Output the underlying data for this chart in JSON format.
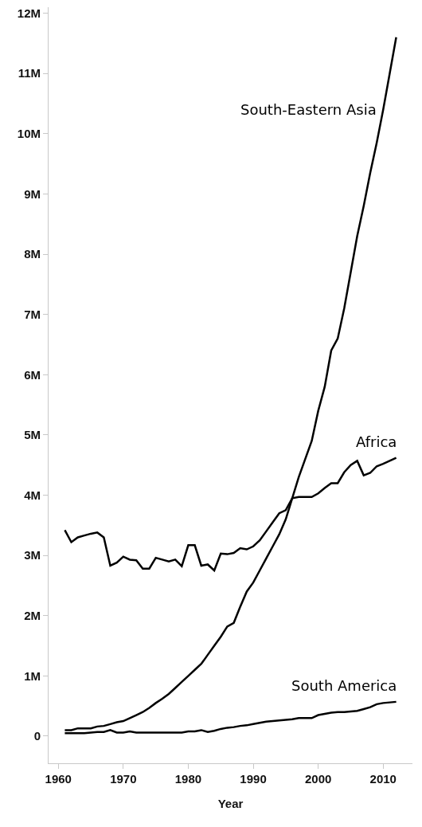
{
  "chart_data": {
    "type": "line",
    "xlabel": "Year",
    "x": [
      1961,
      1962,
      1963,
      1964,
      1965,
      1966,
      1967,
      1968,
      1969,
      1970,
      1971,
      1972,
      1973,
      1974,
      1975,
      1976,
      1977,
      1978,
      1979,
      1980,
      1981,
      1982,
      1983,
      1984,
      1985,
      1986,
      1987,
      1988,
      1989,
      1990,
      1991,
      1992,
      1993,
      1994,
      1995,
      1996,
      1997,
      1998,
      1999,
      2000,
      2001,
      2002,
      2003,
      2004,
      2005,
      2006,
      2007,
      2008,
      2009,
      2010,
      2011,
      2012
    ],
    "series": [
      {
        "name": "South-Eastern Asia",
        "color": "#000000",
        "values": [
          0.1,
          0.1,
          0.13,
          0.13,
          0.13,
          0.16,
          0.17,
          0.2,
          0.23,
          0.25,
          0.3,
          0.35,
          0.4,
          0.47,
          0.55,
          0.62,
          0.7,
          0.8,
          0.9,
          1.0,
          1.1,
          1.2,
          1.35,
          1.5,
          1.65,
          1.82,
          1.88,
          2.15,
          2.4,
          2.55,
          2.75,
          2.95,
          3.15,
          3.35,
          3.6,
          3.95,
          4.3,
          4.6,
          4.9,
          5.4,
          5.8,
          6.4,
          6.6,
          7.1,
          7.7,
          8.3,
          8.8,
          9.35,
          9.85,
          10.4,
          11.0,
          11.6
        ]
      },
      {
        "name": "Africa",
        "color": "#000000",
        "values": [
          3.42,
          3.22,
          3.3,
          3.33,
          3.36,
          3.38,
          3.3,
          2.83,
          2.88,
          2.98,
          2.93,
          2.92,
          2.78,
          2.78,
          2.96,
          2.93,
          2.9,
          2.93,
          2.82,
          3.17,
          3.17,
          2.83,
          2.85,
          2.75,
          3.03,
          3.02,
          3.04,
          3.12,
          3.1,
          3.15,
          3.25,
          3.4,
          3.55,
          3.7,
          3.75,
          3.95,
          3.97,
          3.97,
          3.97,
          4.03,
          4.12,
          4.2,
          4.2,
          4.38,
          4.5,
          4.57,
          4.33,
          4.37,
          4.48,
          4.52,
          4.57,
          4.62
        ]
      },
      {
        "name": "South America",
        "color": "#000000",
        "values": [
          0.05,
          0.05,
          0.05,
          0.05,
          0.06,
          0.07,
          0.07,
          0.1,
          0.06,
          0.06,
          0.08,
          0.06,
          0.06,
          0.06,
          0.06,
          0.06,
          0.06,
          0.06,
          0.06,
          0.08,
          0.08,
          0.1,
          0.07,
          0.09,
          0.12,
          0.14,
          0.15,
          0.17,
          0.18,
          0.2,
          0.22,
          0.24,
          0.25,
          0.26,
          0.27,
          0.28,
          0.3,
          0.3,
          0.3,
          0.35,
          0.37,
          0.39,
          0.4,
          0.4,
          0.41,
          0.42,
          0.45,
          0.48,
          0.53,
          0.55,
          0.56,
          0.57
        ]
      }
    ],
    "xlim": [
      1958.5,
      2014.5
    ],
    "xticks": [
      1960,
      1970,
      1980,
      1990,
      2000,
      2010
    ],
    "ylim": [
      -0.45,
      12.1
    ],
    "yticks": [
      0,
      {
        "value": 1,
        "label": "1M"
      },
      {
        "value": 2,
        "label": "2M"
      },
      {
        "value": 3,
        "label": "3M"
      },
      {
        "value": 4,
        "label": "4M"
      },
      {
        "value": 5,
        "label": "5M"
      },
      {
        "value": 6,
        "label": "6M"
      },
      {
        "value": 7,
        "label": "7M"
      },
      {
        "value": 8,
        "label": "8M"
      },
      {
        "value": 9,
        "label": "9M"
      },
      {
        "value": 10,
        "label": "10M"
      },
      {
        "value": 11,
        "label": "11M"
      },
      {
        "value": 12,
        "label": "12M"
      }
    ],
    "grid": false,
    "legend": false,
    "marker": "none",
    "line_style": "solid"
  }
}
